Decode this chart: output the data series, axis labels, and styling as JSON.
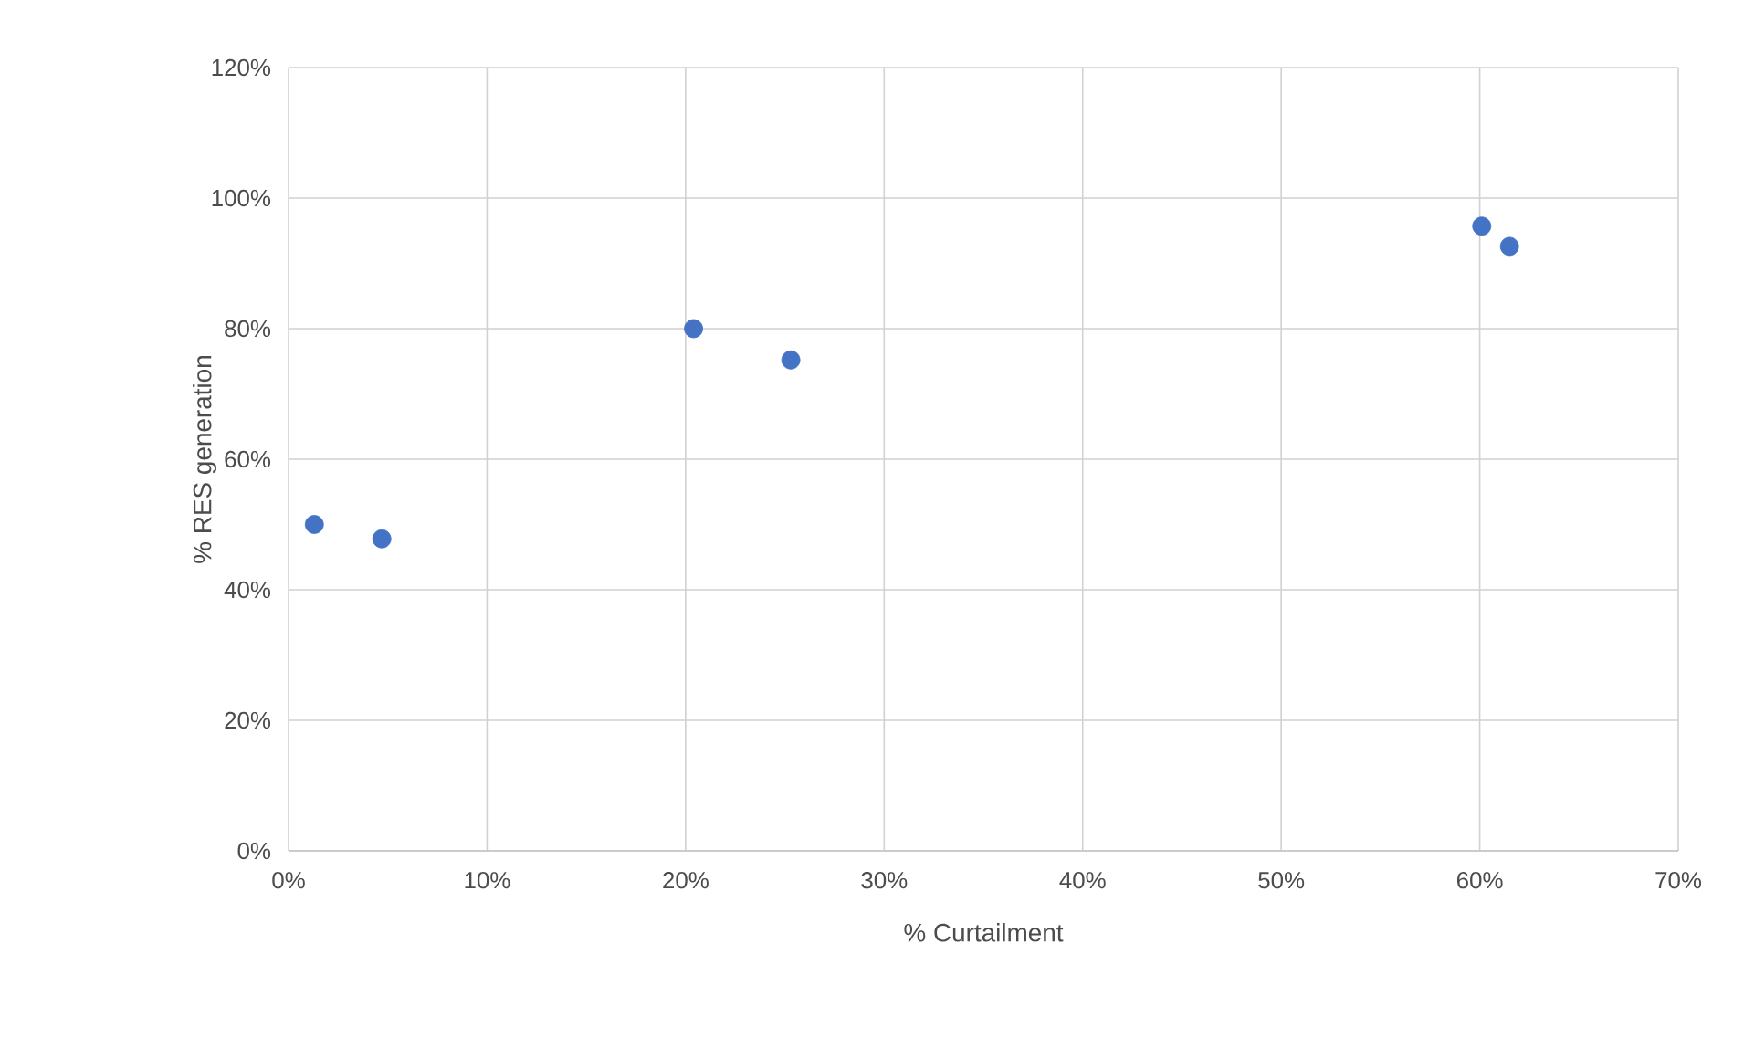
{
  "chart_data": {
    "type": "scatter",
    "xlabel": "% Curtailment",
    "ylabel": "% RES generation",
    "x": [
      1.3,
      4.7,
      20.4,
      25.3,
      60.1,
      61.5
    ],
    "values": [
      50,
      47.8,
      80,
      75.2,
      95.7,
      92.6
    ],
    "color": "#4472c4",
    "marker": "circle",
    "grid": true,
    "xlim": [
      0,
      70
    ],
    "ylim": [
      0,
      120
    ],
    "xticks": [
      {
        "value": 0,
        "label": "0%"
      },
      {
        "value": 10,
        "label": "10%"
      },
      {
        "value": 20,
        "label": "20%"
      },
      {
        "value": 30,
        "label": "30%"
      },
      {
        "value": 40,
        "label": "40%"
      },
      {
        "value": 50,
        "label": "50%"
      },
      {
        "value": 60,
        "label": "60%"
      },
      {
        "value": 70,
        "label": "70%"
      }
    ],
    "yticks": [
      {
        "value": 0,
        "label": "0%"
      },
      {
        "value": 20,
        "label": "20%"
      },
      {
        "value": 40,
        "label": "40%"
      },
      {
        "value": 60,
        "label": "60%"
      },
      {
        "value": 80,
        "label": "80%"
      },
      {
        "value": 100,
        "label": "100%"
      },
      {
        "value": 120,
        "label": "120%"
      }
    ]
  }
}
